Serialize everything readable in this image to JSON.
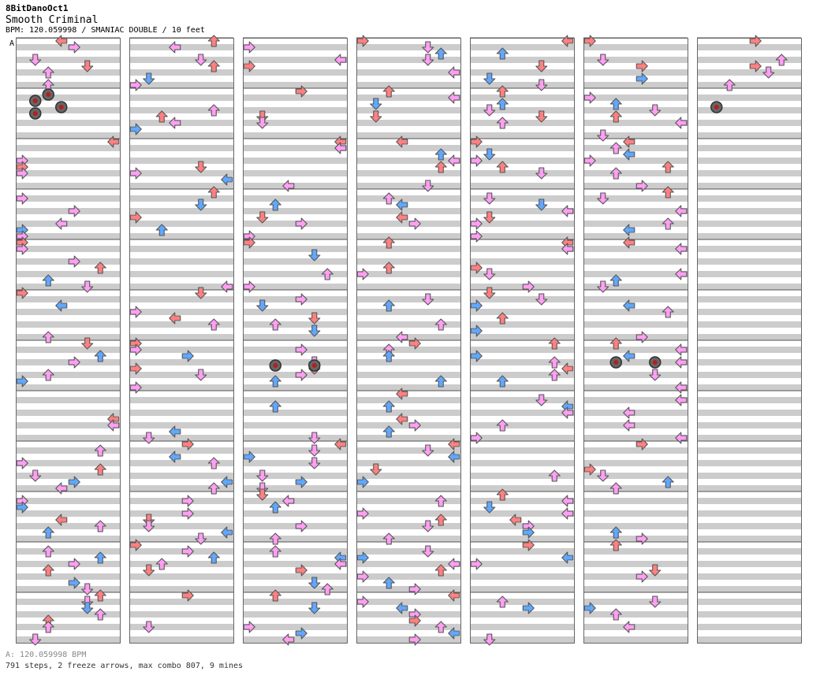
{
  "header": {
    "author": "8BitDanoOct1",
    "title": "Smooth Criminal",
    "meta": "BPM: 120.059998 / SMANIAC DOUBLE / 10 feet",
    "bpm_marker": "A"
  },
  "footer": {
    "bpm_line": "A: 120.059998 BPM",
    "stats_line": "791 steps, 2 freeze arrows, max combo 807, 9 mines"
  },
  "colors": {
    "quarter": "#ff8080",
    "eighth": "#60a8ff",
    "sixteenth": "#ff9ff3",
    "stripe": "#cccccc",
    "mine_ring": "#333333",
    "freeze": "#80ff80"
  },
  "chart": {
    "columns": 7,
    "measures_per_column": 12,
    "lanes": 8,
    "mines": [
      {
        "col": 0,
        "measure": 1,
        "beat_16": 2,
        "lane": 2
      },
      {
        "col": 0,
        "measure": 1,
        "beat_16": 4,
        "lane": 1
      },
      {
        "col": 0,
        "measure": 1,
        "beat_16": 6,
        "lane": 3
      },
      {
        "col": 0,
        "measure": 1,
        "beat_16": 8,
        "lane": 1
      },
      {
        "col": 2,
        "measure": 6,
        "beat_16": 8,
        "lane": 2
      },
      {
        "col": 2,
        "measure": 6,
        "beat_16": 8,
        "lane": 5
      },
      {
        "col": 5,
        "measure": 6,
        "beat_16": 7,
        "lane": 2
      },
      {
        "col": 5,
        "measure": 6,
        "beat_16": 7,
        "lane": 5
      },
      {
        "col": 6,
        "measure": 1,
        "beat_16": 6,
        "lane": 1
      }
    ]
  }
}
